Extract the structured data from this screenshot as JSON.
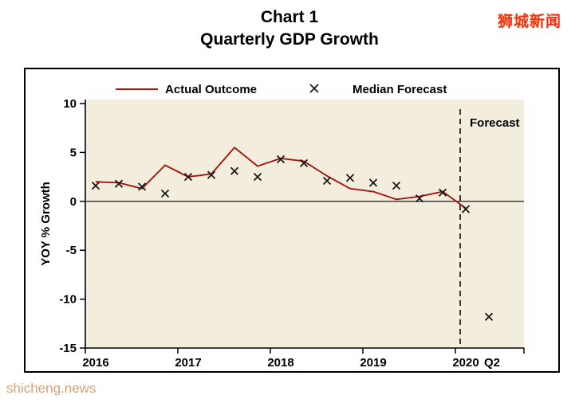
{
  "watermarks": {
    "top_right": "狮城新闻",
    "bottom_left": "shicheng.news"
  },
  "title": {
    "line1": "Chart 1",
    "line2": "Quarterly GDP Growth"
  },
  "chart_data": {
    "type": "line",
    "title": "Quarterly GDP Growth",
    "ylabel": "YOY % Growth",
    "ylim": [
      -15,
      10
    ],
    "yticks": [
      10,
      5,
      0,
      -5,
      -10,
      -15
    ],
    "x_year_labels": [
      "2016",
      "2017",
      "2018",
      "2019",
      "2020"
    ],
    "x_end_label": "Q2",
    "quarters": [
      "2016Q1",
      "2016Q2",
      "2016Q3",
      "2016Q4",
      "2017Q1",
      "2017Q2",
      "2017Q3",
      "2017Q4",
      "2018Q1",
      "2018Q2",
      "2018Q3",
      "2018Q4",
      "2019Q1",
      "2019Q2",
      "2019Q3",
      "2019Q4",
      "2020Q1",
      "2020Q2"
    ],
    "annotation": "Forecast",
    "forecast_start": "2020Q1",
    "grid": false,
    "legend_position": "top",
    "plot_bg": "#f2eddc",
    "series": [
      {
        "name": "Actual Outcome",
        "type": "line",
        "color": "#a5160f",
        "values": [
          2.0,
          1.9,
          1.3,
          3.7,
          2.5,
          2.8,
          5.5,
          3.6,
          4.4,
          4.1,
          2.6,
          1.3,
          1.0,
          0.2,
          0.5,
          1.0,
          -0.7
        ]
      },
      {
        "name": "Median Forecast",
        "type": "scatter",
        "marker": "x",
        "color": "#1a1a1a",
        "values": [
          1.6,
          1.8,
          1.5,
          0.8,
          2.5,
          2.7,
          3.1,
          2.5,
          4.3,
          3.9,
          2.1,
          2.4,
          1.9,
          1.6,
          0.3,
          0.9,
          -0.8,
          -11.8
        ]
      }
    ]
  }
}
